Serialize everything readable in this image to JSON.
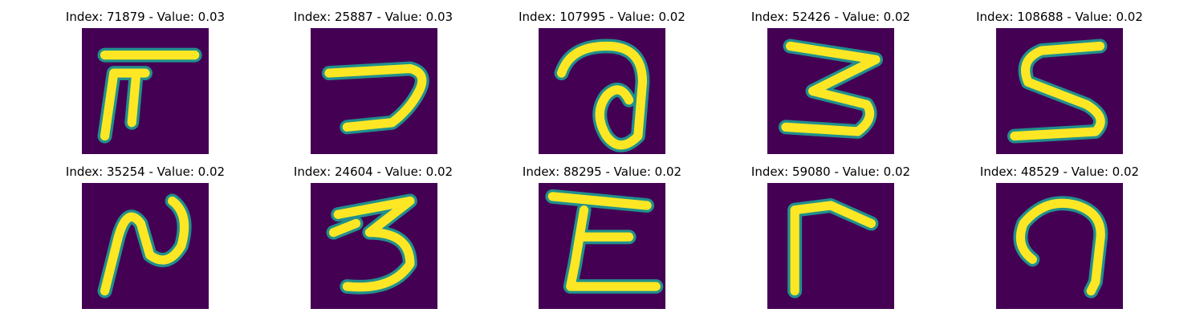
{
  "figure": {
    "colors": {
      "background": "#440154",
      "glyph_edge": "#21908d",
      "glyph_core": "#fde725"
    },
    "panels": [
      {
        "title": "Index: 71879 - Value: 0.03"
      },
      {
        "title": "Index: 25887 - Value: 0.03"
      },
      {
        "title": "Index: 107995 - Value: 0.02"
      },
      {
        "title": "Index: 52426 - Value: 0.02"
      },
      {
        "title": "Index: 108688 - Value: 0.02"
      },
      {
        "title": "Index: 35254 - Value: 0.02"
      },
      {
        "title": "Index: 24604 - Value: 0.02"
      },
      {
        "title": "Index: 88295 - Value: 0.02"
      },
      {
        "title": "Index: 59080 - Value: 0.02"
      },
      {
        "title": "Index: 48529 - Value: 0.02"
      }
    ]
  }
}
